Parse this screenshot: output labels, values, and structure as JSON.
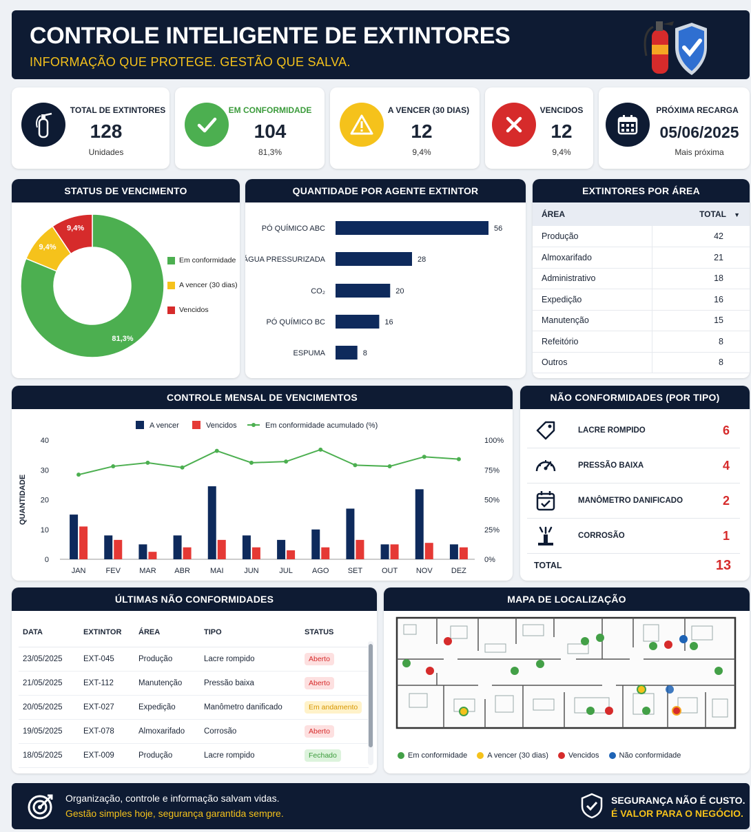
{
  "header": {
    "title": "CONTROLE INTELIGENTE DE EXTINTORES",
    "subtitle": "INFORMAÇÃO QUE PROTEGE. GESTÃO QUE SALVA.",
    "logo_icon": "extinguisher-shield-icon"
  },
  "kpis": [
    {
      "label": "TOTAL DE EXTINTORES",
      "value": "128",
      "sub": "Unidades",
      "icon": "extinguisher-icon",
      "color": "#0e1b33"
    },
    {
      "label": "EM CONFORMIDADE",
      "value": "104",
      "sub": "81,3%",
      "icon": "check-icon",
      "color": "#4caf50"
    },
    {
      "label": "A VENCER (30 DIAS)",
      "value": "12",
      "sub": "9,4%",
      "icon": "warning-icon",
      "color": "#f5c21b"
    },
    {
      "label": "VENCIDOS",
      "value": "12",
      "sub": "9,4%",
      "icon": "x-icon",
      "color": "#d62b2b"
    },
    {
      "label": "PRÓXIMA RECARGA",
      "value": "05/06/2025",
      "sub": "Mais próxima",
      "icon": "calendar-icon",
      "color": "#0e1b33"
    }
  ],
  "status_panel": {
    "title": "STATUS DE VENCIMENTO",
    "legend": [
      "Em conformidade",
      "A vencer (30 dias)",
      "Vencidos"
    ]
  },
  "agent_panel": {
    "title": "QUANTIDADE POR AGENTE EXTINTOR"
  },
  "area_panel": {
    "title": "EXTINTORES POR ÁREA",
    "col_area": "ÁREA",
    "col_total": "TOTAL",
    "rows": [
      {
        "area": "Produção",
        "total": "42"
      },
      {
        "area": "Almoxarifado",
        "total": "21"
      },
      {
        "area": "Administrativo",
        "total": "18"
      },
      {
        "area": "Expedição",
        "total": "16"
      },
      {
        "area": "Manutenção",
        "total": "15"
      },
      {
        "area": "Refeitório",
        "total": "8"
      },
      {
        "area": "Outros",
        "total": "8"
      }
    ]
  },
  "monthly_panel": {
    "title": "CONTROLE MENSAL DE VENCIMENTOS"
  },
  "nc_panel": {
    "title": "NÃO CONFORMIDADES (POR TIPO)",
    "rows": [
      {
        "label": "LACRE ROMPIDO",
        "value": "6",
        "icon": "tag-icon"
      },
      {
        "label": "PRESSÃO BAIXA",
        "value": "4",
        "icon": "gauge-icon"
      },
      {
        "label": "MANÔMETRO DANIFICADO",
        "value": "2",
        "icon": "calendar-check-icon"
      },
      {
        "label": "CORROSÃO",
        "value": "1",
        "icon": "corrosion-icon"
      }
    ],
    "total_label": "TOTAL",
    "total_value": "13"
  },
  "last_panel": {
    "title": "ÚLTIMAS NÃO CONFORMIDADES",
    "headers": [
      "DATA",
      "EXTINTOR",
      "ÁREA",
      "TIPO",
      "STATUS"
    ],
    "rows": [
      {
        "data": "23/05/2025",
        "extintor": "EXT-045",
        "area": "Produção",
        "tipo": "Lacre rompido",
        "status": "Aberto",
        "status_kind": "red"
      },
      {
        "data": "21/05/2025",
        "extintor": "EXT-112",
        "area": "Manutenção",
        "tipo": "Pressão baixa",
        "status": "Aberto",
        "status_kind": "red"
      },
      {
        "data": "20/05/2025",
        "extintor": "EXT-027",
        "area": "Expedição",
        "tipo": "Manômetro danificado",
        "status": "Em andamento",
        "status_kind": "yellow"
      },
      {
        "data": "19/05/2025",
        "extintor": "EXT-078",
        "area": "Almoxarifado",
        "tipo": "Corrosão",
        "status": "Aberto",
        "status_kind": "red"
      },
      {
        "data": "18/05/2025",
        "extintor": "EXT-009",
        "area": "Produção",
        "tipo": "Lacre rompido",
        "status": "Fechado",
        "status_kind": "green"
      }
    ]
  },
  "map_panel": {
    "title": "MAPA DE LOCALIZAÇÃO",
    "legend": [
      {
        "label": "Em conformidade",
        "color": "#43a047"
      },
      {
        "label": "A vencer (30 dias)",
        "color": "#f5c21b"
      },
      {
        "label": "Vencidos",
        "color": "#d62b2b"
      },
      {
        "label": "Não conformidade",
        "color": "#1e63b5"
      }
    ]
  },
  "footer": {
    "line1": "Organização, controle e informação salvam vidas.",
    "line2": "Gestão simples hoje, segurança garantida sempre.",
    "right1": "SEGURANÇA NÃO É CUSTO.",
    "right2": "É VALOR PARA O NEGÓCIO."
  },
  "colors": {
    "navy": "#0e1b33",
    "green": "#4caf50",
    "yellow": "#f5c21b",
    "red": "#d62b2b",
    "blue": "#1e63b5"
  },
  "chart_data": [
    {
      "type": "pie",
      "categories": [
        "Em conformidade",
        "A vencer (30 dias)",
        "Vencidos"
      ],
      "values": [
        81.3,
        9.4,
        9.4
      ],
      "labels": [
        "81,3%",
        "9,4%",
        "9,4%"
      ],
      "colors": [
        "#4caf50",
        "#f5c21b",
        "#d62b2b"
      ]
    },
    {
      "type": "bar",
      "orientation": "horizontal",
      "categories": [
        "PÓ QUÍMICO ABC",
        "ÁGUA PRESSURIZADA",
        "CO₂",
        "PÓ QUÍMICO BC",
        "ESPUMA"
      ],
      "values": [
        56,
        28,
        20,
        16,
        8
      ],
      "color": "#0e2a5c"
    },
    {
      "type": "bar",
      "categories": [
        "JAN",
        "FEV",
        "MAR",
        "ABR",
        "MAI",
        "JUN",
        "JUL",
        "AGO",
        "SET",
        "OUT",
        "NOV",
        "DEZ"
      ],
      "ylabel": "QUANTIDADE",
      "ylim": [
        0,
        40
      ],
      "yticks": [
        "0",
        "10",
        "20",
        "30",
        "40"
      ],
      "y2lim": [
        0,
        100
      ],
      "y2ticks": [
        "0%",
        "25%",
        "50%",
        "75%",
        "100%"
      ],
      "series": [
        {
          "name": "A vencer",
          "type": "bar",
          "color": "#0e2a5c",
          "values": [
            15,
            8,
            5,
            8,
            24.5,
            8,
            6.5,
            10,
            17,
            5,
            23.5,
            5
          ]
        },
        {
          "name": "Vencidos",
          "type": "bar",
          "color": "#e53935",
          "values": [
            11,
            6.5,
            2.5,
            4,
            6.5,
            4,
            3,
            4,
            6.5,
            5,
            5.5,
            4
          ]
        },
        {
          "name": "Em conformidade acumulado (%)",
          "type": "line",
          "axis": "right",
          "color": "#4caf50",
          "values": [
            71,
            78,
            81,
            77,
            91,
            81,
            82,
            92,
            79,
            78,
            86,
            84
          ]
        }
      ]
    }
  ]
}
